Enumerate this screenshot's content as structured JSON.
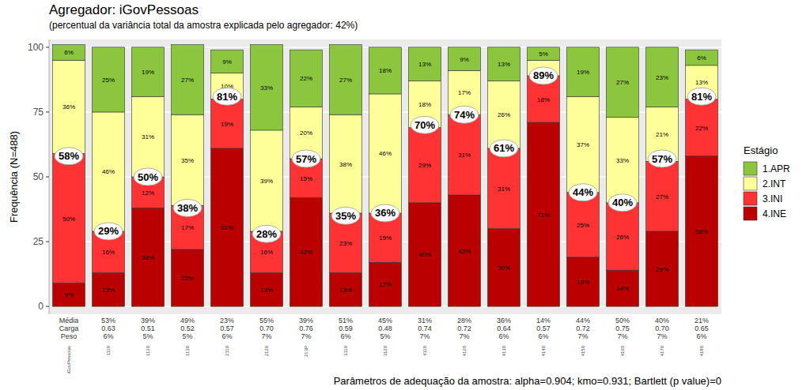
{
  "chart_data": {
    "type": "bar",
    "title": "Agregador: iGovPessoas",
    "subtitle": "(percentual da variância total da amostra explicada pelo agregador: 42%)",
    "y_label": "Frequência (N=488)",
    "caption": "Parâmetros de adequação da amostra: alpha=0.904; kmo=0.931; Bartlett (p value)=0",
    "legend_title": "Estágio",
    "legend": "right",
    "stacked": true,
    "data_labels": true,
    "grid": true,
    "ylim": [
      -3,
      103
    ],
    "yticks": [
      0,
      25,
      50,
      75,
      100
    ],
    "categories": [
      "iGovPessoas",
      "1110",
      "1120",
      "1130",
      "2110",
      "2120",
      "213P",
      "3110",
      "3120",
      "4110",
      "4120",
      "4130",
      "4140",
      "4150",
      "4160",
      "4170",
      "4180"
    ],
    "series": [
      {
        "name": "1.APR",
        "color": "#8cc63f",
        "values": [
          6,
          25,
          19,
          27,
          9,
          33,
          22,
          27,
          18,
          13,
          9,
          13,
          5,
          19,
          27,
          23,
          6
        ],
        "value_labels": [
          "6%",
          "25%",
          "19%",
          "27%",
          "9%",
          "33%",
          "22%",
          "27%",
          "18%",
          "13%",
          "9%",
          "13%",
          "5%",
          "19%",
          "27%",
          "23%",
          "6%"
        ]
      },
      {
        "name": "2.INT",
        "color": "#ffff99",
        "values": [
          36,
          46,
          31,
          35,
          10,
          39,
          20,
          38,
          46,
          18,
          17,
          26,
          6,
          37,
          33,
          21,
          13
        ],
        "value_labels": [
          "36%",
          "46%",
          "31%",
          "35%",
          "10%",
          "39%",
          "20%",
          "38%",
          "46%",
          "18%",
          "17%",
          "26%",
          null,
          "37%",
          "33%",
          "21%",
          "13%"
        ]
      },
      {
        "name": "3.INI",
        "color": "#ff3333",
        "values": [
          50,
          16,
          12,
          17,
          19,
          16,
          15,
          23,
          19,
          29,
          31,
          31,
          18,
          25,
          26,
          27,
          22
        ],
        "value_labels": [
          "50%",
          "16%",
          "12%",
          "17%",
          "19%",
          "16%",
          "15%",
          "23%",
          "19%",
          "29%",
          "31%",
          "31%",
          "18%",
          "25%",
          "26%",
          "27%",
          "22%"
        ]
      },
      {
        "name": "4.INE",
        "color": "#bb0000",
        "values": [
          9,
          13,
          38,
          22,
          61,
          13,
          42,
          13,
          17,
          40,
          43,
          30,
          71,
          19,
          14,
          29,
          58
        ],
        "value_labels": [
          "9%",
          "13%",
          "38%",
          "22%",
          "61%",
          "13%",
          "42%",
          "13%",
          "17%",
          "40%",
          "43%",
          "30%",
          "71%",
          "19%",
          "14%",
          "29%",
          "58%"
        ]
      }
    ],
    "circles": {
      "values": [
        58,
        29,
        50,
        38,
        81,
        28,
        57,
        35,
        36,
        70,
        74,
        61,
        89,
        44,
        40,
        57,
        81
      ],
      "value_labels": [
        "58%",
        "29%",
        "50%",
        "38%",
        "81%",
        "28%",
        "57%",
        "35%",
        "36%",
        "70%",
        "74%",
        "61%",
        "89%",
        "44%",
        "40%",
        "57%",
        "81%"
      ]
    },
    "table": {
      "row_labels": [
        "Média",
        "Carga",
        "Peso"
      ],
      "rows": [
        [
          "53%",
          "39%",
          "49%",
          "23%",
          "55%",
          "39%",
          "51%",
          "45%",
          "31%",
          "28%",
          "36%",
          "14%",
          "44%",
          "50%",
          "40%",
          "21%"
        ],
        [
          "0.63",
          "0.51",
          "0.52",
          "0.57",
          "0.70",
          "0.76",
          "0.59",
          "0.48",
          "0.74",
          "0.72",
          "0.64",
          "0.57",
          "0.72",
          "0.75",
          "0.70",
          "0.65"
        ],
        [
          "6%",
          "5%",
          "5%",
          "6%",
          "7%",
          "7%",
          "6%",
          "5%",
          "7%",
          "7%",
          "6%",
          "6%",
          "7%",
          "7%",
          "7%",
          "6%"
        ]
      ]
    }
  }
}
